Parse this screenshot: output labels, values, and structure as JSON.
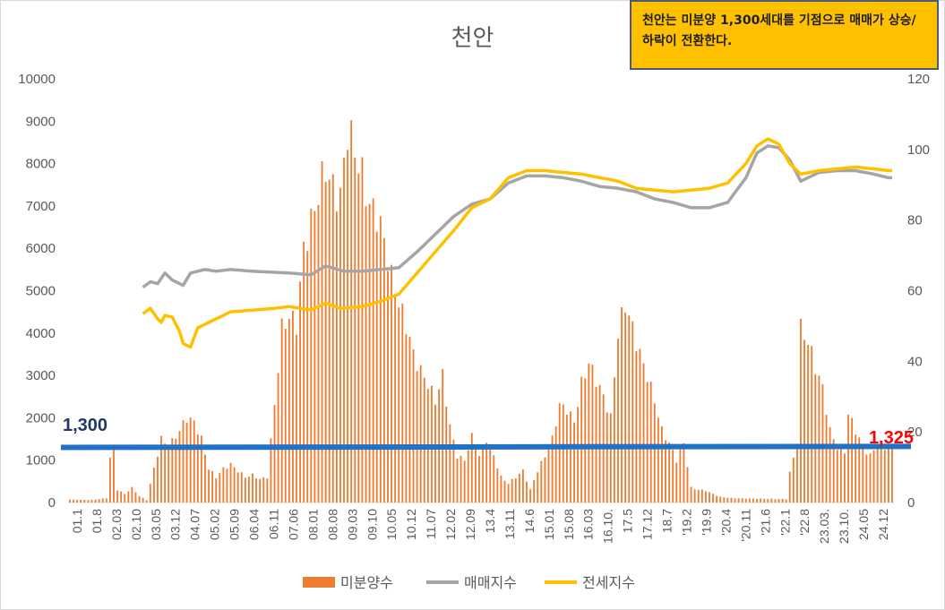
{
  "chart_data": {
    "type": "bar",
    "title": "천안",
    "annotation_box": "천안는 미분양 1,300세대를 기점으로 매매가 상승/하락이 전환한다.",
    "y_left": {
      "min": 0,
      "max": 10000,
      "ticks": [
        "0",
        "1000",
        "2000",
        "3000",
        "4000",
        "5000",
        "6000",
        "7000",
        "8000",
        "9000",
        "10000"
      ]
    },
    "y_right": {
      "min": 0,
      "max": 120,
      "ticks": [
        "0",
        "20",
        "40",
        "60",
        "80",
        "100",
        "120"
      ]
    },
    "x_tick_labels": [
      "01.1",
      "01.8",
      "02.03",
      "02.10",
      "03.05",
      "03.12",
      "04.07",
      "05.02",
      "05.09",
      "06.04",
      "06.11",
      "07.06",
      "08.01",
      "08.08",
      "09.03",
      "09.10",
      "10.05",
      "10.12",
      "11.07",
      "12.02",
      "12.09",
      "13.4",
      "13.11",
      "14.6",
      "15.01",
      "15.08",
      "16.03",
      "16.10.",
      "17.5",
      "17.12",
      "18.7",
      "'19.2",
      "'19.9",
      "'20.4",
      "'20.11",
      "'21.6",
      "'22.1",
      "'22.8",
      "23.03.",
      "23.10.",
      "24.05",
      "24.12"
    ],
    "threshold_line": {
      "label_left": "1,300",
      "label_right": "1,325",
      "start_value": 1300,
      "end_value": 1325
    },
    "series": [
      {
        "name": "미분양수",
        "kind": "bar",
        "axis": "left",
        "color": "#ed7d31",
        "keypoints": [
          [
            0,
            70
          ],
          [
            6,
            60
          ],
          [
            10,
            100
          ],
          [
            11,
            1050
          ],
          [
            12,
            1300
          ],
          [
            13,
            300
          ],
          [
            15,
            200
          ],
          [
            17,
            350
          ],
          [
            19,
            150
          ],
          [
            21,
            60
          ],
          [
            23,
            800
          ],
          [
            25,
            1500
          ],
          [
            27,
            1300
          ],
          [
            30,
            1700
          ],
          [
            32,
            2000
          ],
          [
            34,
            1900
          ],
          [
            36,
            1500
          ],
          [
            38,
            800
          ],
          [
            40,
            600
          ],
          [
            42,
            800
          ],
          [
            44,
            900
          ],
          [
            46,
            750
          ],
          [
            48,
            600
          ],
          [
            50,
            650
          ],
          [
            52,
            550
          ],
          [
            54,
            600
          ],
          [
            56,
            2300
          ],
          [
            58,
            4100
          ],
          [
            60,
            4400
          ],
          [
            62,
            4200
          ],
          [
            64,
            6000
          ],
          [
            66,
            6600
          ],
          [
            68,
            7300
          ],
          [
            70,
            7900
          ],
          [
            72,
            7400
          ],
          [
            74,
            7200
          ],
          [
            76,
            8800
          ],
          [
            78,
            8300
          ],
          [
            80,
            7700
          ],
          [
            82,
            7000
          ],
          [
            84,
            6800
          ],
          [
            86,
            6200
          ],
          [
            88,
            5300
          ],
          [
            90,
            4700
          ],
          [
            92,
            4200
          ],
          [
            94,
            3500
          ],
          [
            96,
            3100
          ],
          [
            98,
            2800
          ],
          [
            100,
            2400
          ],
          [
            102,
            3000
          ],
          [
            104,
            1800
          ],
          [
            106,
            1100
          ],
          [
            108,
            1000
          ],
          [
            110,
            1550
          ],
          [
            112,
            1100
          ],
          [
            114,
            1500
          ],
          [
            116,
            1100
          ],
          [
            118,
            600
          ],
          [
            120,
            450
          ],
          [
            122,
            600
          ],
          [
            124,
            750
          ],
          [
            126,
            300
          ],
          [
            128,
            750
          ],
          [
            130,
            1100
          ],
          [
            132,
            1500
          ],
          [
            134,
            2300
          ],
          [
            136,
            2200
          ],
          [
            138,
            1900
          ],
          [
            140,
            2800
          ],
          [
            142,
            3300
          ],
          [
            144,
            2900
          ],
          [
            146,
            2500
          ],
          [
            148,
            2000
          ],
          [
            150,
            4000
          ],
          [
            152,
            4700
          ],
          [
            154,
            4100
          ],
          [
            156,
            3500
          ],
          [
            158,
            3000
          ],
          [
            160,
            2400
          ],
          [
            162,
            1700
          ],
          [
            164,
            1400
          ],
          [
            166,
            1000
          ],
          [
            168,
            1400
          ],
          [
            170,
            350
          ],
          [
            172,
            300
          ],
          [
            174,
            280
          ],
          [
            176,
            200
          ],
          [
            178,
            130
          ],
          [
            182,
            100
          ],
          [
            196,
            80
          ],
          [
            197,
            700
          ],
          [
            199,
            1400
          ],
          [
            200,
            4100
          ],
          [
            202,
            3800
          ],
          [
            204,
            3200
          ],
          [
            206,
            2700
          ],
          [
            208,
            1700
          ],
          [
            210,
            1300
          ],
          [
            212,
            1200
          ],
          [
            213,
            2100
          ],
          [
            215,
            1700
          ],
          [
            217,
            1300
          ],
          [
            219,
            1100
          ],
          [
            221,
            1400
          ],
          [
            223,
            1300
          ],
          [
            225,
            1325
          ]
        ]
      },
      {
        "name": "매매지수",
        "kind": "line",
        "axis": "right",
        "color": "#a5a5a5",
        "keypoints": [
          [
            20,
            61.0
          ],
          [
            22,
            62.5
          ],
          [
            24,
            62.0
          ],
          [
            26,
            65.0
          ],
          [
            28,
            63.0
          ],
          [
            30,
            62.0
          ],
          [
            31,
            61.5
          ],
          [
            33,
            65.0
          ],
          [
            37,
            66.0
          ],
          [
            40,
            65.5
          ],
          [
            44,
            66.0
          ],
          [
            50,
            65.5
          ],
          [
            60,
            65.0
          ],
          [
            66,
            64.5
          ],
          [
            70,
            67.0
          ],
          [
            75,
            65.5
          ],
          [
            80,
            65.5
          ],
          [
            85,
            66.0
          ],
          [
            90,
            66.5
          ],
          [
            95,
            71.0
          ],
          [
            100,
            76.0
          ],
          [
            105,
            81.0
          ],
          [
            110,
            84.5
          ],
          [
            115,
            86.0
          ],
          [
            120,
            90.5
          ],
          [
            125,
            92.5
          ],
          [
            130,
            92.5
          ],
          [
            135,
            92.0
          ],
          [
            140,
            91.0
          ],
          [
            145,
            89.5
          ],
          [
            150,
            89.0
          ],
          [
            155,
            88.0
          ],
          [
            160,
            86.0
          ],
          [
            165,
            85.0
          ],
          [
            170,
            83.5
          ],
          [
            175,
            83.5
          ],
          [
            180,
            85.0
          ],
          [
            185,
            92.0
          ],
          [
            188,
            99.0
          ],
          [
            191,
            101.0
          ],
          [
            194,
            100.5
          ],
          [
            197,
            97.0
          ],
          [
            200,
            91.0
          ],
          [
            205,
            93.5
          ],
          [
            210,
            94.0
          ],
          [
            215,
            94.0
          ],
          [
            220,
            93.0
          ],
          [
            224,
            92.0
          ],
          [
            225,
            92.0
          ]
        ]
      },
      {
        "name": "전세지수",
        "kind": "line",
        "axis": "right",
        "color": "#ffc000",
        "keypoints": [
          [
            20,
            53.5
          ],
          [
            22,
            55.0
          ],
          [
            24,
            52.0
          ],
          [
            25,
            51.0
          ],
          [
            26,
            53.0
          ],
          [
            28,
            52.5
          ],
          [
            30,
            48.5
          ],
          [
            31,
            45.0
          ],
          [
            33,
            44.0
          ],
          [
            35,
            49.5
          ],
          [
            38,
            51.0
          ],
          [
            40,
            52.0
          ],
          [
            44,
            54.0
          ],
          [
            50,
            54.5
          ],
          [
            56,
            55.0
          ],
          [
            60,
            55.5
          ],
          [
            66,
            54.5
          ],
          [
            70,
            56.5
          ],
          [
            74,
            55.0
          ],
          [
            80,
            55.5
          ],
          [
            85,
            57.0
          ],
          [
            90,
            59.0
          ],
          [
            95,
            65.0
          ],
          [
            100,
            71.0
          ],
          [
            105,
            77.0
          ],
          [
            110,
            83.5
          ],
          [
            115,
            86.0
          ],
          [
            120,
            92.0
          ],
          [
            125,
            94.0
          ],
          [
            130,
            94.0
          ],
          [
            135,
            93.5
          ],
          [
            140,
            93.0
          ],
          [
            145,
            92.0
          ],
          [
            150,
            91.0
          ],
          [
            155,
            89.0
          ],
          [
            160,
            88.5
          ],
          [
            165,
            88.0
          ],
          [
            170,
            88.5
          ],
          [
            175,
            89.0
          ],
          [
            180,
            90.5
          ],
          [
            185,
            96.0
          ],
          [
            188,
            101.0
          ],
          [
            191,
            103.0
          ],
          [
            194,
            101.5
          ],
          [
            197,
            96.0
          ],
          [
            200,
            93.0
          ],
          [
            205,
            94.0
          ],
          [
            210,
            94.5
          ],
          [
            215,
            95.0
          ],
          [
            220,
            94.5
          ],
          [
            224,
            94.0
          ],
          [
            225,
            94.0
          ]
        ]
      },
      {
        "name": "1,300 기준선",
        "kind": "line",
        "axis": "left",
        "color": "#1f72c4",
        "keypoints": [
          [
            0,
            1300
          ],
          [
            225,
            1325
          ]
        ]
      }
    ],
    "legend": {
      "placement": "bottom",
      "entries": [
        "미분양수",
        "매매지수",
        "전세지수"
      ]
    },
    "colors": {
      "bars": "#ed7d31",
      "sale_index": "#a5a5a5",
      "jeonse_index": "#ffc000",
      "threshold": "#1f72c4",
      "label_left": "#1f3864",
      "label_right": "#ff0000",
      "note_bg": "#ffc000"
    }
  }
}
